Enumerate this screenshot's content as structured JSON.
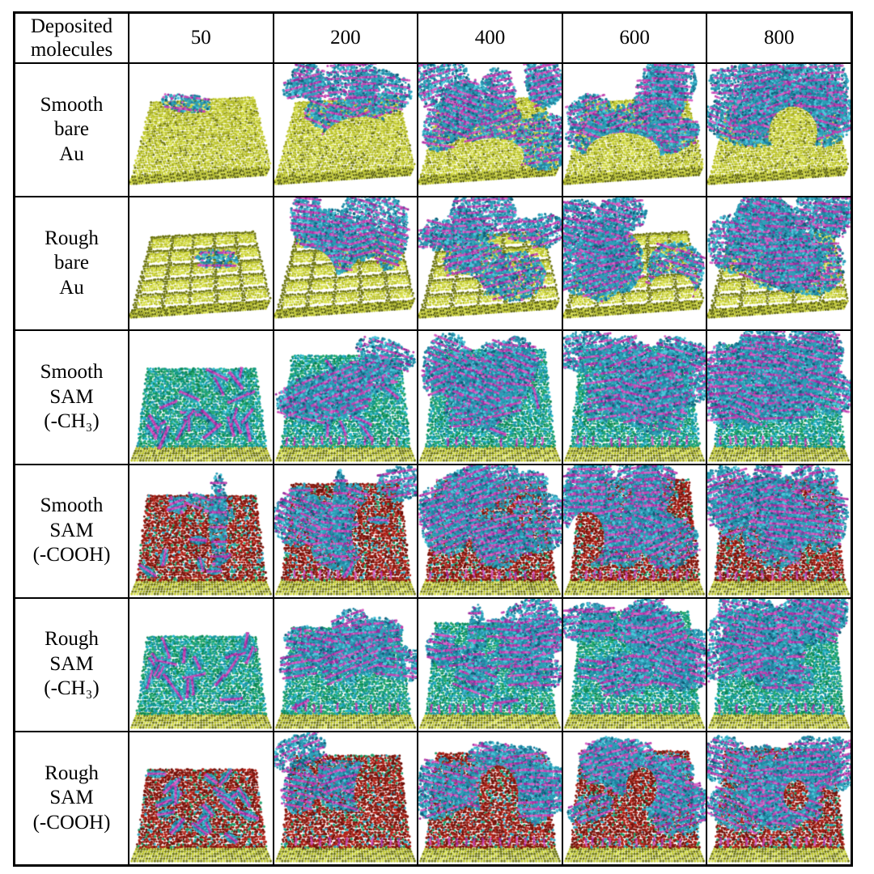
{
  "figure": {
    "type": "simulation-snapshot-table"
  },
  "colors": {
    "background": "#ffffff",
    "grid_line": "#000000",
    "text": "#000000",
    "gold": [
      "#d8e04a",
      "#bdc52c",
      "#9fa71c",
      "#6f7710"
    ],
    "gold_front": "#5f660c",
    "teal": [
      "#4cc8dc",
      "#2e9fb8",
      "#1f83a0",
      "#115e78"
    ],
    "magenta": [
      "#d964c6",
      "#c144b0",
      "#9a2c9e"
    ],
    "sam_ch3": [
      "#23a86e",
      "#149a8a",
      "#0d8a55",
      "#1b9ab0",
      "#26b8c8"
    ],
    "sam_cooh": [
      "#8c1a10",
      "#b5241a",
      "#6f120b",
      "#1fa06a",
      "#2ea4bc"
    ]
  },
  "table": {
    "header": {
      "corner_lines": [
        "Deposited",
        "molecules"
      ],
      "columns": [
        "50",
        "200",
        "400",
        "600",
        "800"
      ]
    },
    "rows": [
      {
        "id": "smooth-bare-au",
        "label_lines": [
          "Smooth",
          "bare",
          "Au"
        ],
        "substrate": "smooth-au",
        "cells": [
          {
            "column": "50",
            "seed": 101,
            "fill": 0.1,
            "tall": 0.25
          },
          {
            "column": "200",
            "seed": 102,
            "fill": 0.5,
            "tall": 0.72,
            "gap": [
              0.62,
              0.62,
              0.3,
              0.22
            ]
          },
          {
            "column": "400",
            "seed": 103,
            "fill": 0.58,
            "tall": 0.82,
            "gap": [
              0.52,
              0.7,
              0.22,
              0.14
            ]
          },
          {
            "column": "600",
            "seed": 104,
            "fill": 0.62,
            "tall": 0.86,
            "gap": [
              0.42,
              0.68,
              0.26,
              0.16
            ]
          },
          {
            "column": "800",
            "seed": 105,
            "fill": 0.78,
            "tall": 0.92,
            "gap": [
              0.6,
              0.52,
              0.17,
              0.2
            ]
          }
        ]
      },
      {
        "id": "rough-bare-au",
        "label_lines": [
          "Rough",
          "bare",
          "Au"
        ],
        "substrate": "rough-au",
        "cells": [
          {
            "column": "50",
            "seed": 201,
            "fill": 0.12,
            "tall": 0.22
          },
          {
            "column": "200",
            "seed": 202,
            "fill": 0.4,
            "tall": 0.62,
            "gap": [
              0.24,
              0.62,
              0.2,
              0.24
            ]
          },
          {
            "column": "400",
            "seed": 203,
            "fill": 0.52,
            "tall": 0.72,
            "gap": [
              0.3,
              0.72,
              0.16,
              0.14
            ]
          },
          {
            "column": "600",
            "seed": 204,
            "fill": 0.62,
            "tall": 0.8,
            "gap": [
              0.76,
              0.7,
              0.16,
              0.13
            ]
          },
          {
            "column": "800",
            "seed": 205,
            "fill": 0.85,
            "tall": 0.88
          }
        ]
      },
      {
        "id": "smooth-sam-ch3",
        "label_lines": [
          "Smooth",
          "SAM",
          "(-CH₃)"
        ],
        "substrate": "sam-ch3-smooth",
        "cells": [
          {
            "column": "50",
            "seed": 301,
            "fill": 0,
            "tall": 0.05,
            "rods": 26
          },
          {
            "column": "200",
            "seed": 302,
            "fill": 0.45,
            "tall": 0.5,
            "rods": 12
          },
          {
            "column": "400",
            "seed": 303,
            "fill": 0.75,
            "tall": 0.7,
            "rods": 3
          },
          {
            "column": "600",
            "seed": 304,
            "fill": 0.88,
            "tall": 0.8
          },
          {
            "column": "800",
            "seed": 305,
            "fill": 0.92,
            "tall": 0.85
          }
        ]
      },
      {
        "id": "smooth-sam-cooh",
        "label_lines": [
          "Smooth",
          "SAM",
          "(-COOH)"
        ],
        "substrate": "sam-cooh-smooth",
        "cells": [
          {
            "column": "50",
            "seed": 401,
            "fill": 0.12,
            "tall": 0.3,
            "rods": 9,
            "towers": 1
          },
          {
            "column": "200",
            "seed": 402,
            "fill": 0.45,
            "tall": 0.7,
            "rods": 4,
            "towers": 1,
            "gap": [
              0.74,
              0.5,
              0.2,
              0.26
            ]
          },
          {
            "column": "400",
            "seed": 403,
            "fill": 0.68,
            "tall": 0.8
          },
          {
            "column": "600",
            "seed": 404,
            "fill": 0.72,
            "tall": 0.85,
            "gap": [
              0.16,
              0.55,
              0.13,
              0.2
            ]
          },
          {
            "column": "800",
            "seed": 405,
            "fill": 0.9,
            "tall": 0.85
          }
        ]
      },
      {
        "id": "rough-sam-ch3",
        "label_lines": [
          "Rough",
          "SAM",
          "(-CH₃)"
        ],
        "substrate": "sam-ch3-rough",
        "cells": [
          {
            "column": "50",
            "seed": 501,
            "fill": 0,
            "tall": 0.05,
            "rods": 22
          },
          {
            "column": "200",
            "seed": 502,
            "fill": 0.45,
            "tall": 0.35,
            "rods": 8
          },
          {
            "column": "400",
            "seed": 503,
            "fill": 0.6,
            "tall": 0.5,
            "rods": 4,
            "towers": 1
          },
          {
            "column": "600",
            "seed": 504,
            "fill": 0.7,
            "tall": 0.9,
            "towers": 1
          },
          {
            "column": "800",
            "seed": 505,
            "fill": 0.78,
            "tall": 0.95,
            "towers": 2
          }
        ]
      },
      {
        "id": "rough-sam-cooh",
        "label_lines": [
          "Rough",
          "SAM",
          "(-COOH)"
        ],
        "substrate": "sam-cooh-rough",
        "cells": [
          {
            "column": "50",
            "seed": 601,
            "fill": 0,
            "tall": 0.06,
            "rods": 20
          },
          {
            "column": "200",
            "seed": 602,
            "fill": 0.55,
            "tall": 0.55,
            "gap": [
              0.76,
              0.44,
              0.2,
              0.27
            ]
          },
          {
            "column": "400",
            "seed": 603,
            "fill": 0.62,
            "tall": 0.62,
            "gap": [
              0.56,
              0.48,
              0.14,
              0.23
            ]
          },
          {
            "column": "600",
            "seed": 604,
            "fill": 0.72,
            "tall": 0.7,
            "gap": [
              0.55,
              0.42,
              0.11,
              0.16
            ]
          },
          {
            "column": "800",
            "seed": 605,
            "fill": 0.82,
            "tall": 0.78,
            "gap": [
              0.62,
              0.48,
              0.09,
              0.12
            ]
          }
        ]
      }
    ]
  }
}
